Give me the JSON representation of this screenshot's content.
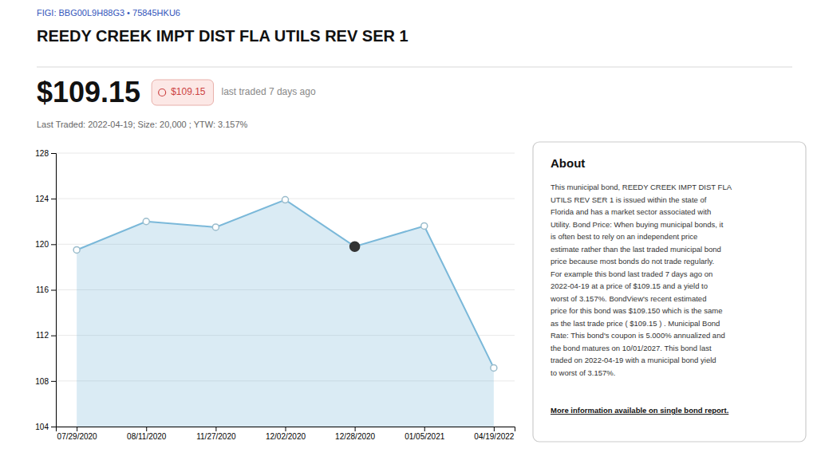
{
  "chart_data": {
    "type": "line",
    "title": "REEDY CREEK IMPT DIST FLA UTILS REV SER 1",
    "subtitle": "FIGI: BBG00L9H88G3 • 75845HKU6",
    "annotations": [
      "$109.15",
      "$109.15",
      "last traded 7 days ago",
      "Last Traded: 2022-04-19; Size: 20,000 ; YTW: 3.157%",
      "About",
      "This municipal bond, REEDY CREEK IMPT DIST FLA\nUTILS REV SER 1 is issued within the state of\nFlorida and has a market sector associated with\nUtility. Bond Price: When buying municipal bonds, it\nis often best to rely on an independent price\nestimate rather than the last traded municipal bond\nprice because most bonds do not trade regularly.\nFor example this bond last traded 7 days ago on\n2022-04-19 at a price of $109.15 and a yield to\nworst of 3.157%. BondView's recent estimated\nprice for this bond was $109.150 which is the same\nas the last trade price ( $109.15 ) . Municipal Bond\nRate: This bond's coupon is 5.000% annualized and\nthe bond matures on 10/01/2027. This bond last\ntraded on 2022-04-19 with a municipal bond yield\nto worst of 3.157%.",
      "More information available on single bond report."
    ],
    "categories": [
      "07/29/2020",
      "08/11/2020",
      "11/27/2020",
      "12/02/2020",
      "12/28/2020",
      "01/05/2021",
      "04/19/2022"
    ],
    "values": [
      119.5,
      122.0,
      121.5,
      123.9,
      119.8,
      121.6,
      109.15
    ],
    "color": "#7ab8d9",
    "colors": [
      "#9abccc",
      "#9abccc",
      "#9abccc",
      "#9abccc",
      "#333333",
      "#9abccc",
      "#9abccc"
    ],
    "marker": "circle",
    "ylim": [
      104,
      128
    ],
    "yticks": [
      104,
      108,
      112,
      116,
      120,
      124,
      128
    ],
    "grid": true
  }
}
